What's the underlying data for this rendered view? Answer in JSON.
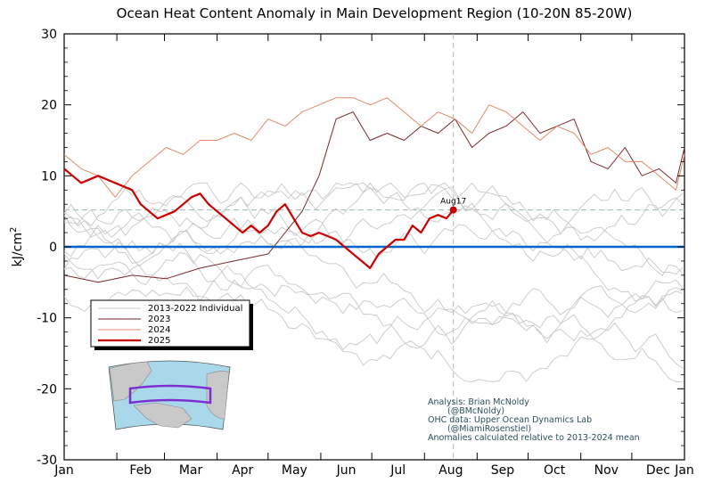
{
  "chart_data": {
    "type": "line",
    "title": "Ocean Heat Content Anomaly in Main Development Region (10-20N 85-20W)",
    "ylabel": "kJ/cm",
    "ylabel_superscript": "2",
    "ylim": [
      -30,
      30
    ],
    "yticks": [
      "30",
      "20",
      "10",
      "0",
      "-10",
      "-20",
      "-30"
    ],
    "xticks": [
      "Jan",
      "Feb",
      "Mar",
      "Apr",
      "May",
      "Jun",
      "Jul",
      "Aug",
      "Sep",
      "Oct",
      "Nov",
      "Dec",
      "Jan"
    ],
    "marker_label": "Aug17",
    "marker_day": 229,
    "marker_value": 5.2,
    "reference_h": 5.2,
    "legend": {
      "placement": "lower-left",
      "items": [
        "2013-2022 Individual",
        "2023",
        "2024",
        "2025"
      ]
    },
    "credits": [
      "Analysis: Brian McNoldy",
      "(@BMcNoldy)",
      "OHC data: Upper Ocean Dynamics Lab",
      "(@MiamiRosenstiel)",
      "Anomalies calculated relative to 2013-2024 mean"
    ],
    "colors": {
      "individual": "#c8c8c8",
      "y2023": "#7a2a2a",
      "y2024": "#e08a6a",
      "y2025": "#cc0000",
      "zero_line": "#0066cc",
      "reference": "#9ab8b0",
      "credit": "#2b4f5c"
    },
    "series": [
      {
        "name": "2023",
        "x": [
          0,
          20,
          40,
          60,
          80,
          100,
          120,
          140,
          150,
          160,
          170,
          180,
          190,
          200,
          210,
          220,
          230,
          240,
          250,
          260,
          270,
          280,
          290,
          300,
          310,
          320,
          330,
          340,
          350,
          360,
          365
        ],
        "values": [
          -4,
          -5,
          -4,
          -4.5,
          -3,
          -2,
          -1,
          5,
          10,
          18,
          19,
          15,
          16,
          15,
          17,
          16,
          18,
          14,
          16,
          17,
          19,
          16,
          17,
          18,
          12,
          11,
          14,
          10,
          11,
          9,
          14
        ]
      },
      {
        "name": "2024",
        "x": [
          0,
          10,
          20,
          30,
          40,
          50,
          60,
          70,
          80,
          90,
          100,
          110,
          120,
          130,
          140,
          150,
          160,
          170,
          180,
          190,
          200,
          210,
          220,
          230,
          240,
          250,
          260,
          270,
          280,
          290,
          300,
          310,
          320,
          330,
          340,
          350,
          360,
          365
        ],
        "values": [
          13,
          11,
          10,
          7,
          10,
          12,
          14,
          13,
          15,
          15,
          16,
          15,
          18,
          17,
          19,
          20,
          21,
          21,
          20,
          21,
          19,
          17,
          19,
          18,
          16,
          20,
          19,
          17,
          15,
          17,
          16,
          13,
          14,
          12,
          12,
          10,
          8,
          13
        ]
      },
      {
        "name": "2025",
        "x": [
          0,
          5,
          10,
          20,
          30,
          40,
          45,
          50,
          55,
          60,
          65,
          70,
          75,
          80,
          85,
          90,
          95,
          100,
          105,
          110,
          115,
          120,
          125,
          130,
          135,
          140,
          145,
          150,
          155,
          160,
          165,
          170,
          175,
          180,
          185,
          190,
          195,
          200,
          205,
          210,
          215,
          220,
          225,
          229
        ],
        "values": [
          11,
          10,
          9,
          10,
          9,
          8,
          6,
          5,
          4,
          4.5,
          5,
          6,
          7,
          7.5,
          6,
          5,
          4,
          3,
          2,
          3,
          2,
          3,
          5,
          6,
          4,
          2,
          1.5,
          2,
          1.5,
          1,
          0,
          -1,
          -2,
          -3,
          -1,
          0,
          1,
          1,
          3,
          2,
          4,
          4.5,
          4,
          5.2
        ]
      }
    ],
    "individual_seed": 7,
    "individual_count": 10
  },
  "map": {
    "box": "10-20N 85-20W"
  }
}
